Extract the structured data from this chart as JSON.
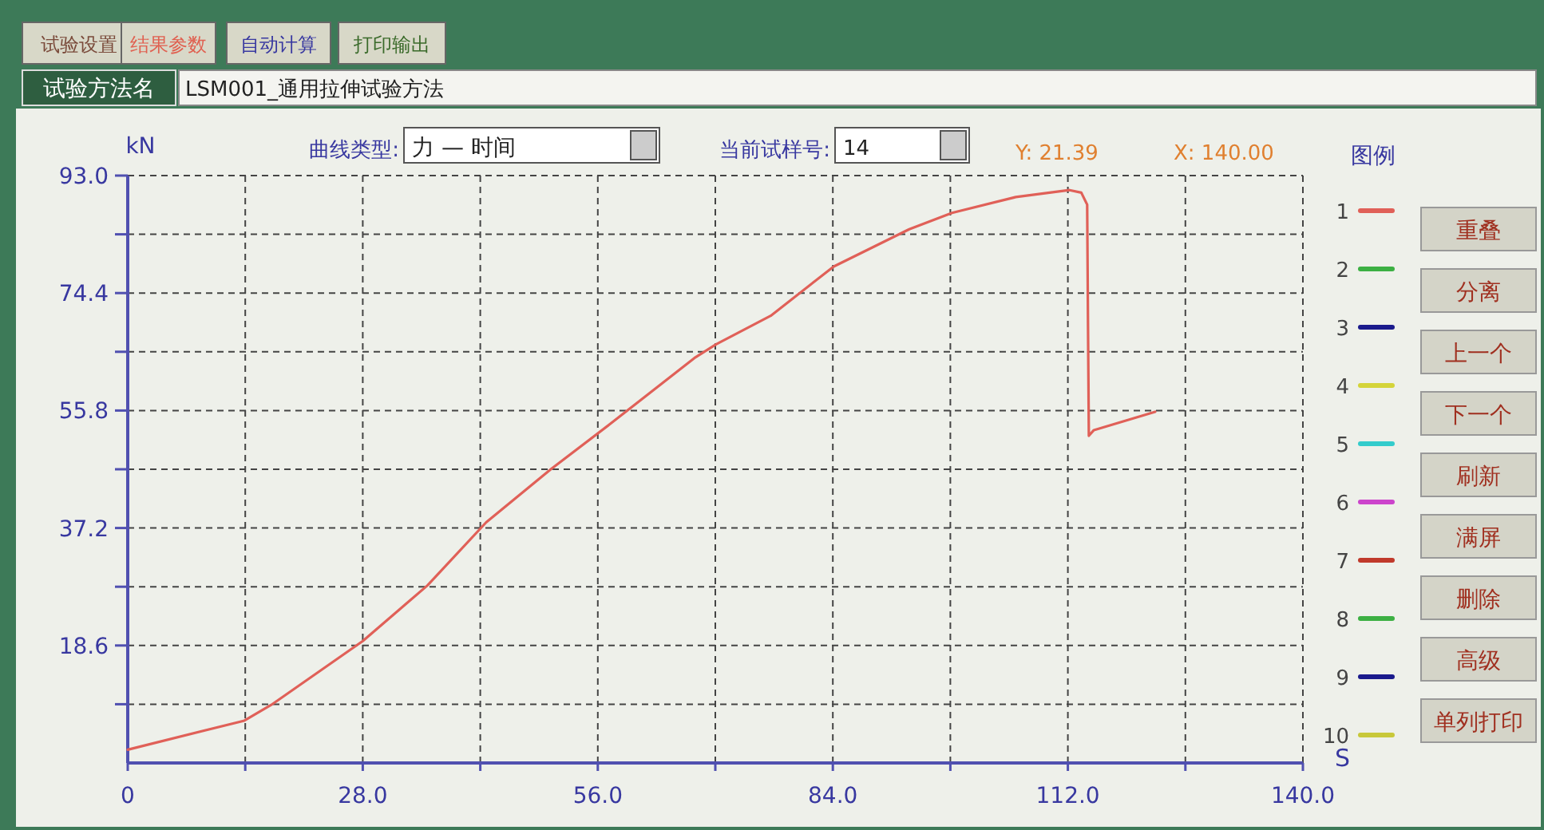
{
  "chart_data": {
    "type": "line",
    "xlabel": "S",
    "ylabel": "kN",
    "legend_title": "图例",
    "xlim": [
      0,
      140
    ],
    "ylim": [
      0,
      93
    ],
    "xticks": [
      0,
      {
        "value": 14,
        "label": null
      },
      {
        "value": 28,
        "label": "28.0"
      },
      {
        "value": 42,
        "label": null
      },
      {
        "value": 56,
        "label": "56.0"
      },
      {
        "value": 70,
        "label": null
      },
      {
        "value": 84,
        "label": "84.0"
      },
      {
        "value": 98,
        "label": null
      },
      {
        "value": 112,
        "label": "112.0"
      },
      {
        "value": 126,
        "label": null
      },
      {
        "value": 140,
        "label": "140.0"
      }
    ],
    "yticks": [
      {
        "value": 9.3,
        "label": null
      },
      {
        "value": 18.6,
        "label": "18.6"
      },
      {
        "value": 27.9,
        "label": null
      },
      {
        "value": 37.2,
        "label": "37.2"
      },
      {
        "value": 46.5,
        "label": null
      },
      {
        "value": 55.8,
        "label": "55.8"
      },
      {
        "value": 65.1,
        "label": null
      },
      {
        "value": 74.4,
        "label": "74.4"
      },
      {
        "value": 83.7,
        "label": null
      },
      {
        "value": 93,
        "label": "93.0"
      }
    ],
    "grid": true,
    "legend": "right",
    "line_style": "solid",
    "series": [
      {
        "name": "1",
        "color": "#e06058",
        "x": [
          0,
          13.9,
          17.1,
          28,
          35.7,
          42.7,
          50.4,
          57.4,
          67.5,
          70.1,
          76.6,
          84.1,
          93.1,
          98.2,
          105.8,
          112.2,
          113.6,
          114.3,
          114.4,
          114.5,
          115.1,
          122.4
        ],
        "values": [
          2.1,
          6.7,
          9.2,
          19.3,
          28.1,
          38.1,
          46.5,
          53.6,
          64.1,
          66.3,
          70.8,
          78.6,
          84.5,
          87.1,
          89.6,
          90.7,
          90.3,
          88.4,
          69.2,
          51.8,
          52.7,
          55.6
        ]
      },
      {
        "name": "2",
        "color": "#3cb043"
      },
      {
        "name": "3",
        "color": "#1a1a8c"
      },
      {
        "name": "4",
        "color": "#d4d43a"
      },
      {
        "name": "5",
        "color": "#33cccc"
      },
      {
        "name": "6",
        "color": "#cc44cc"
      },
      {
        "name": "7",
        "color": "#c0392b"
      },
      {
        "name": "8",
        "color": "#3cb043"
      },
      {
        "name": "9",
        "color": "#1a1a8c"
      },
      {
        "name": "10",
        "color": "#c8c83a"
      }
    ],
    "annotations": [
      "试验设置",
      "结果参数",
      "自动计算",
      "打印输出",
      "试验方法名",
      "LSM001_通用拉伸试验方法",
      "曲线类型:",
      "力 — 时间",
      "当前试样号:",
      "14",
      "Y: 21.39",
      "X: 140.00",
      "重叠",
      "分离",
      "上一个",
      "下一个",
      "刷新",
      "满屏",
      "删除",
      "高级",
      "单列打印"
    ]
  }
}
